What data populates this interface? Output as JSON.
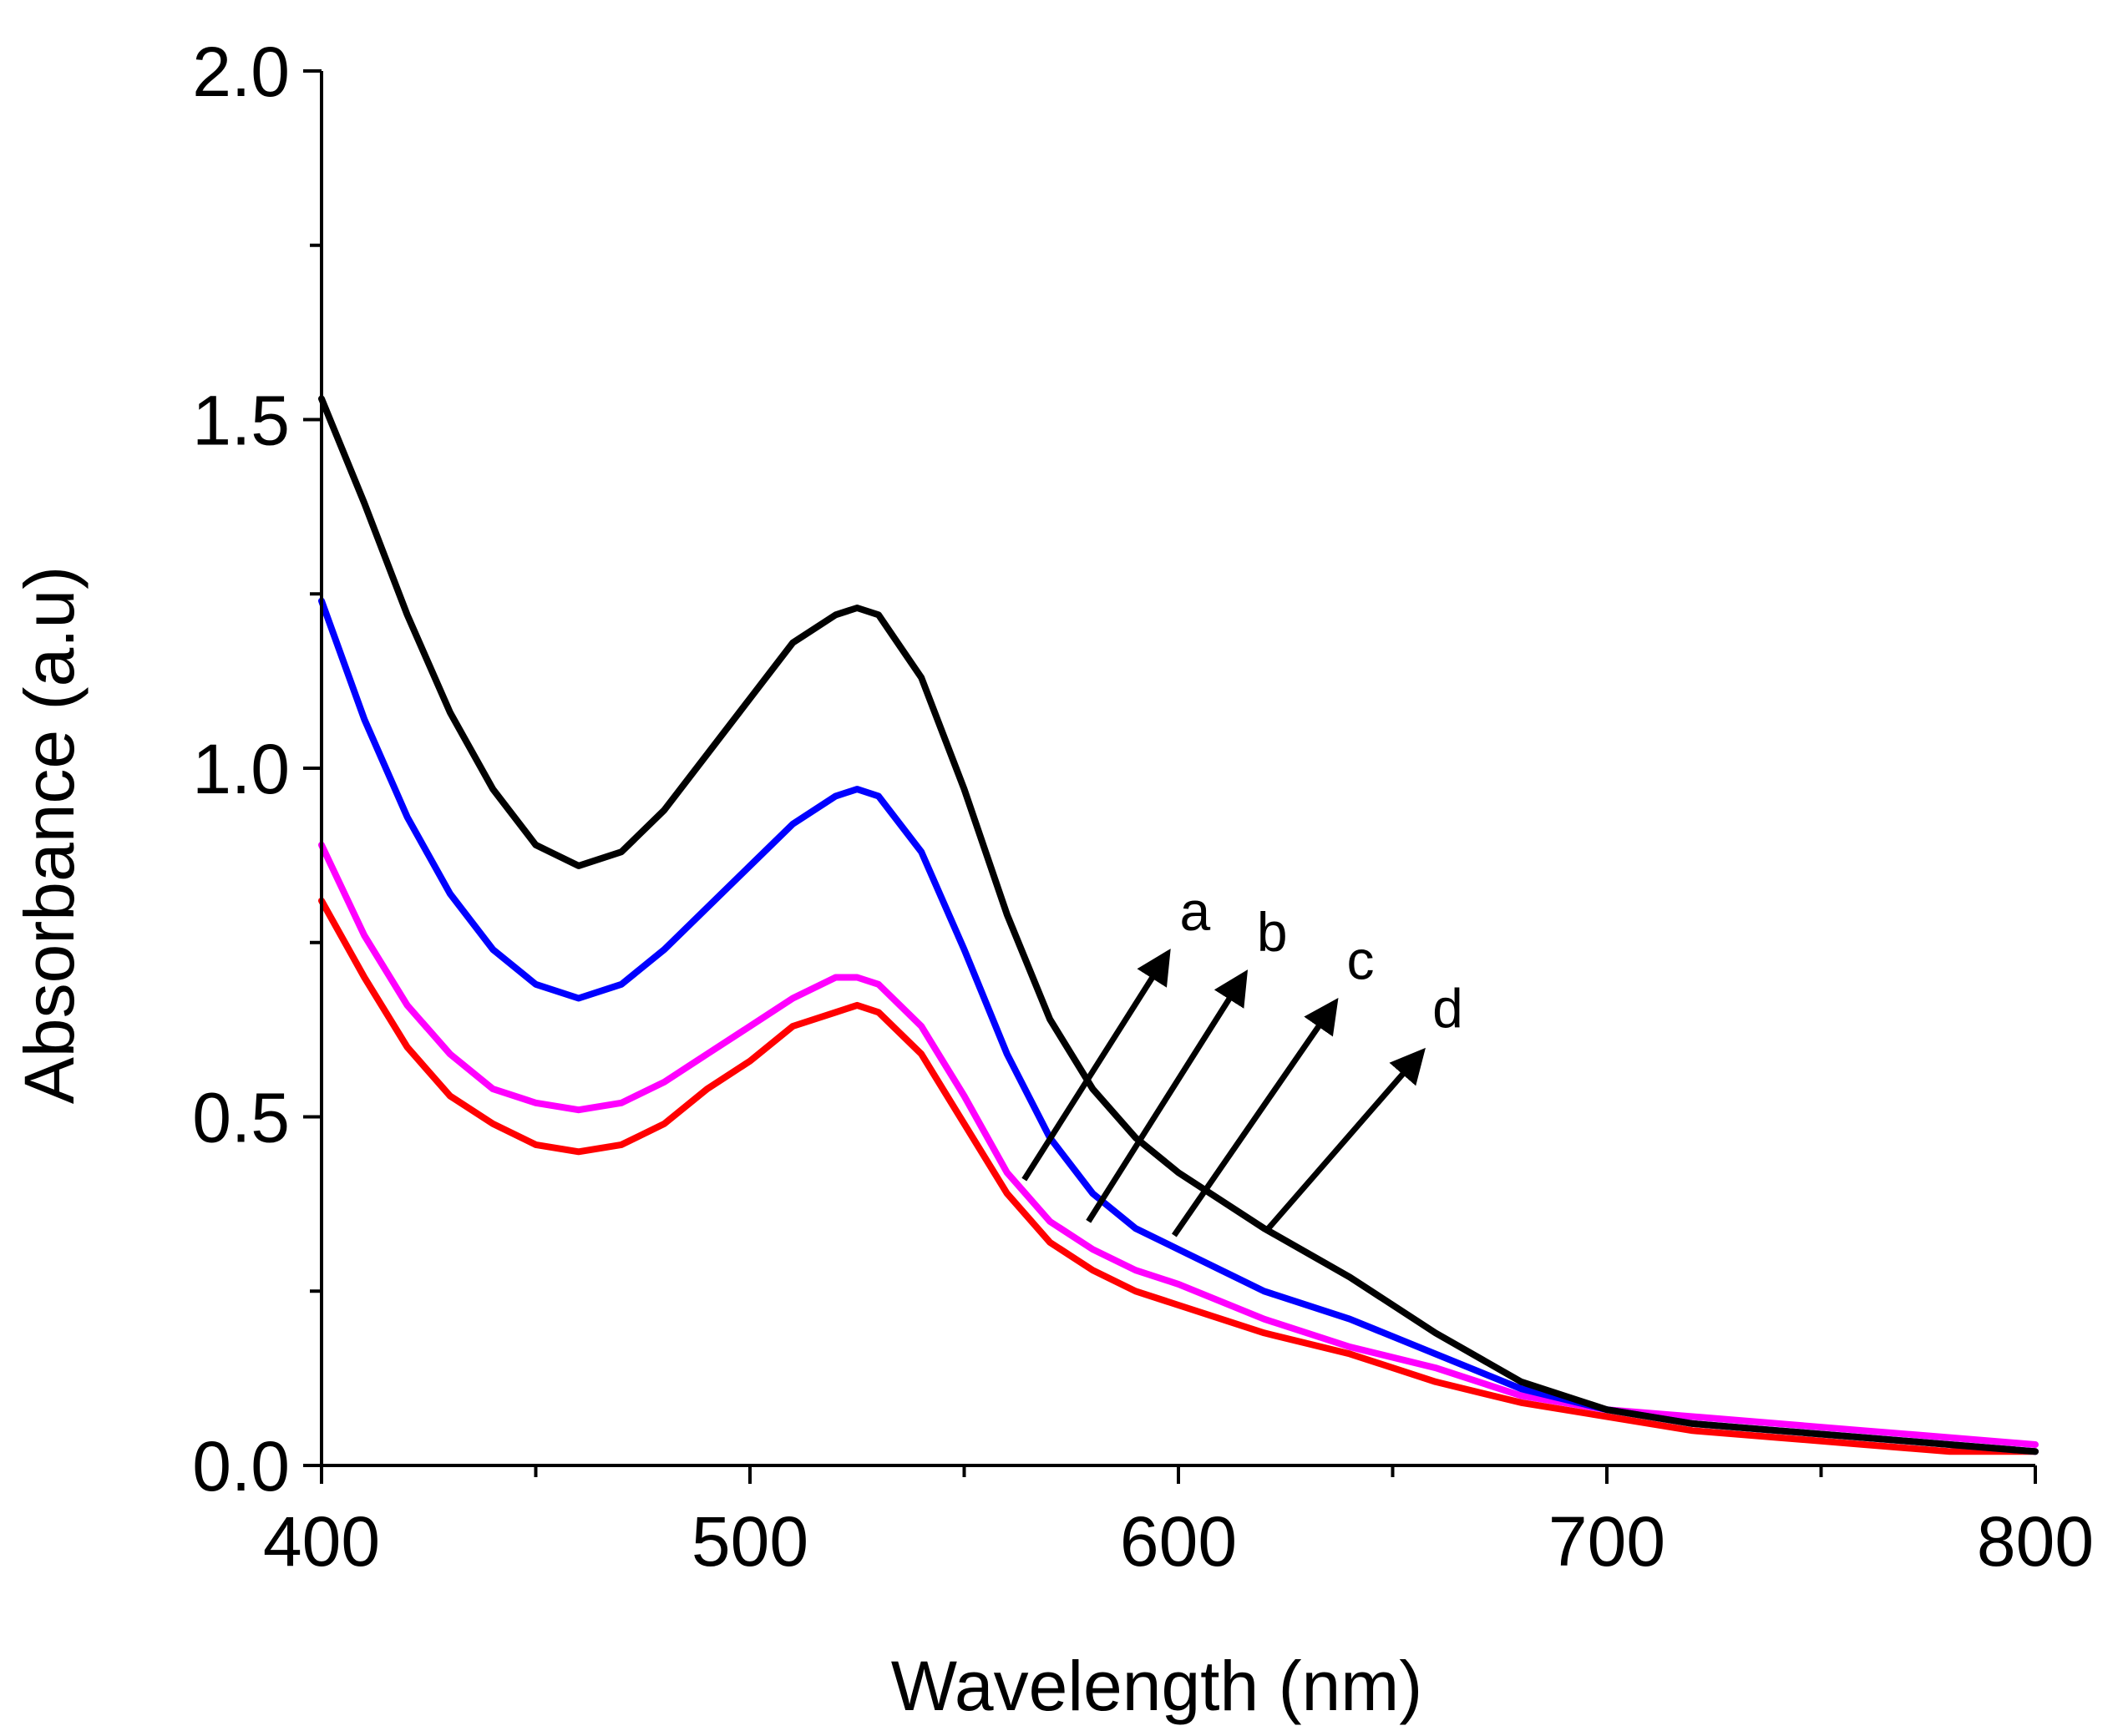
{
  "chart_data": {
    "type": "line",
    "title": "",
    "xlabel": "Wavelength (nm)",
    "ylabel": "Absorbance (a.u)",
    "xlim": [
      400,
      800
    ],
    "ylim": [
      0,
      2.0
    ],
    "x_ticks": [
      "400",
      "500",
      "600",
      "700",
      "800"
    ],
    "y_ticks": [
      "0.0",
      "0.5",
      "1.0",
      "1.5",
      "2.0"
    ],
    "grid": false,
    "series": [
      {
        "name": "a",
        "color": "#000000",
        "x": [
          400,
          410,
          420,
          430,
          440,
          450,
          460,
          470,
          480,
          490,
          500,
          510,
          520,
          525,
          530,
          540,
          550,
          560,
          570,
          580,
          590,
          600,
          620,
          640,
          660,
          680,
          700,
          720,
          740,
          760,
          780,
          800
        ],
        "y": [
          1.53,
          1.38,
          1.22,
          1.08,
          0.97,
          0.89,
          0.86,
          0.88,
          0.94,
          1.02,
          1.1,
          1.18,
          1.22,
          1.23,
          1.22,
          1.13,
          0.97,
          0.79,
          0.64,
          0.54,
          0.47,
          0.42,
          0.34,
          0.27,
          0.19,
          0.12,
          0.08,
          0.06,
          0.05,
          0.04,
          0.03,
          0.02
        ]
      },
      {
        "name": "b",
        "color": "#0000ff",
        "x": [
          400,
          410,
          420,
          430,
          440,
          450,
          460,
          470,
          480,
          490,
          500,
          510,
          520,
          525,
          530,
          540,
          550,
          560,
          570,
          580,
          590,
          600,
          620,
          640,
          660,
          680,
          700,
          720,
          740,
          760,
          780,
          800
        ],
        "y": [
          1.24,
          1.07,
          0.93,
          0.82,
          0.74,
          0.69,
          0.67,
          0.69,
          0.74,
          0.8,
          0.86,
          0.92,
          0.96,
          0.97,
          0.96,
          0.88,
          0.74,
          0.59,
          0.47,
          0.39,
          0.34,
          0.31,
          0.25,
          0.21,
          0.16,
          0.11,
          0.08,
          0.06,
          0.05,
          0.04,
          0.03,
          0.02
        ]
      },
      {
        "name": "c",
        "color": "#ff00ff",
        "x": [
          400,
          410,
          420,
          430,
          440,
          450,
          460,
          470,
          480,
          490,
          500,
          510,
          520,
          525,
          530,
          540,
          550,
          560,
          570,
          580,
          590,
          600,
          620,
          640,
          660,
          680,
          700,
          720,
          740,
          760,
          780,
          800
        ],
        "y": [
          0.89,
          0.76,
          0.66,
          0.59,
          0.54,
          0.52,
          0.51,
          0.52,
          0.55,
          0.59,
          0.63,
          0.67,
          0.7,
          0.7,
          0.69,
          0.63,
          0.53,
          0.42,
          0.35,
          0.31,
          0.28,
          0.26,
          0.21,
          0.17,
          0.14,
          0.1,
          0.08,
          0.07,
          0.06,
          0.05,
          0.04,
          0.03
        ]
      },
      {
        "name": "d",
        "color": "#ff0000",
        "x": [
          400,
          410,
          420,
          430,
          440,
          450,
          460,
          470,
          480,
          490,
          500,
          510,
          520,
          525,
          530,
          540,
          550,
          560,
          570,
          580,
          590,
          600,
          620,
          640,
          660,
          680,
          700,
          720,
          740,
          760,
          780,
          800
        ],
        "y": [
          0.81,
          0.7,
          0.6,
          0.53,
          0.49,
          0.46,
          0.45,
          0.46,
          0.49,
          0.54,
          0.58,
          0.63,
          0.65,
          0.66,
          0.65,
          0.59,
          0.49,
          0.39,
          0.32,
          0.28,
          0.25,
          0.23,
          0.19,
          0.16,
          0.12,
          0.09,
          0.07,
          0.05,
          0.04,
          0.03,
          0.02,
          0.02
        ]
      }
    ],
    "annotations": [
      {
        "label": "a",
        "from": [
          564,
          0.41
        ],
        "to": [
          596,
          0.72
        ]
      },
      {
        "label": "b",
        "from": [
          579,
          0.35
        ],
        "to": [
          614,
          0.69
        ]
      },
      {
        "label": "c",
        "from": [
          599,
          0.33
        ],
        "to": [
          635,
          0.65
        ]
      },
      {
        "label": "d",
        "from": [
          621,
          0.34
        ],
        "to": [
          655,
          0.58
        ]
      }
    ]
  }
}
